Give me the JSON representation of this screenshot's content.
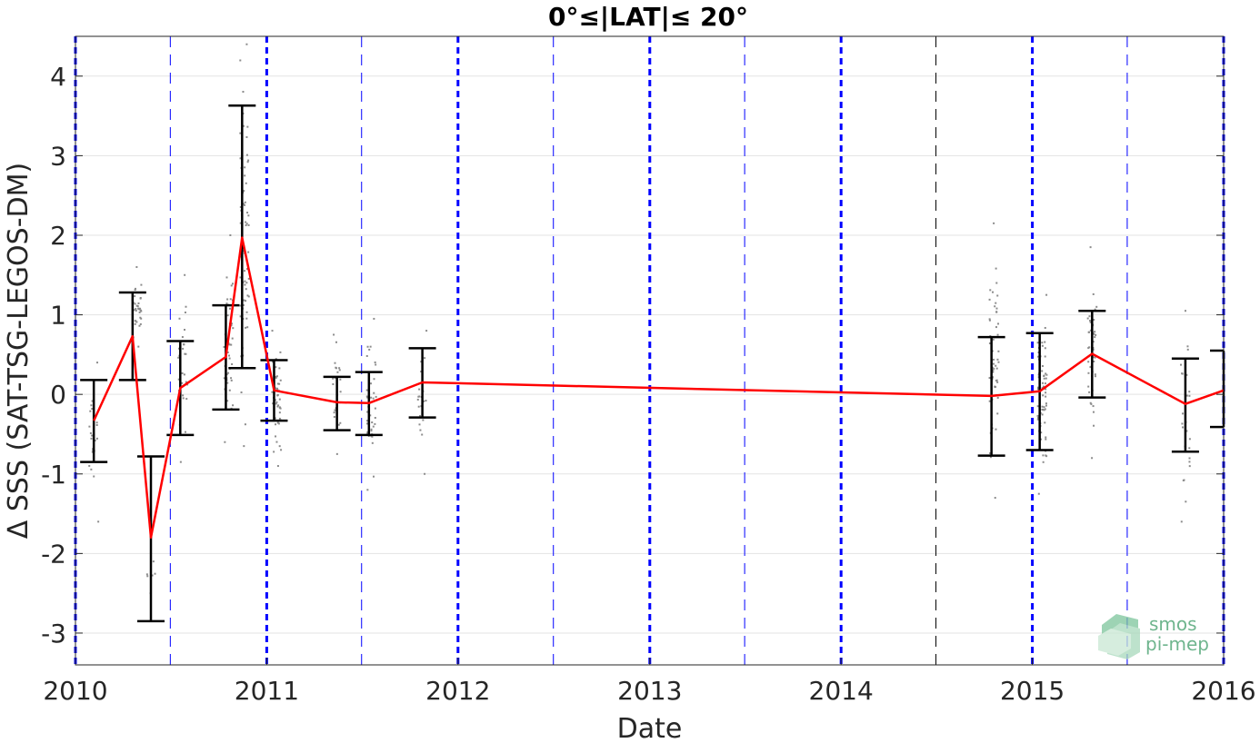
{
  "chart_data": {
    "type": "line",
    "title": "0°≤|LAT|≤ 20°",
    "xlabel": "Date",
    "ylabel": "Δ SSS (SAT-TSG-LEGOS-DM)",
    "xlim": [
      "2010-01-01",
      "2016-01-01"
    ],
    "ylim": [
      -3.4,
      4.5
    ],
    "x_ticks": [
      "2010",
      "2011",
      "2012",
      "2013",
      "2014",
      "2015",
      "2016"
    ],
    "y_ticks": [
      -3,
      -2,
      -1,
      0,
      1,
      2,
      3,
      4
    ],
    "grid": "horizontal",
    "year_lines": [
      "2010-01-01",
      "2011-01-01",
      "2012-01-01",
      "2013-01-01",
      "2014-01-01",
      "2015-01-01",
      "2016-01-01"
    ],
    "halfyear_lines": [
      "2010-07-01",
      "2011-07-01",
      "2012-07-01",
      "2013-07-01",
      "2015-07-01"
    ],
    "black_halfyear_lines": [
      "2014-07-01"
    ],
    "series": [
      {
        "type": "line",
        "color": "#ff0000",
        "x": [
          "2010-02-05",
          "2010-04-20",
          "2010-05-25",
          "2010-07-20",
          "2010-10-15",
          "2010-11-15",
          "2011-01-15",
          "2011-05-15",
          "2011-07-15",
          "2011-10-25",
          "2014-10-15",
          "2015-01-15",
          "2015-04-25",
          "2015-10-20",
          "2016-01-01"
        ],
        "y": [
          -0.33,
          0.73,
          -1.8,
          0.08,
          0.47,
          1.97,
          0.05,
          -0.1,
          -0.11,
          0.15,
          -0.02,
          0.04,
          0.51,
          -0.12,
          0.05
        ]
      }
    ],
    "error_bars": [
      {
        "x": "2010-02-05",
        "low": -0.85,
        "high": 0.18
      },
      {
        "x": "2010-04-20",
        "low": 0.18,
        "high": 1.28
      },
      {
        "x": "2010-05-25",
        "low": -2.85,
        "high": -0.78
      },
      {
        "x": "2010-07-20",
        "low": -0.51,
        "high": 0.67
      },
      {
        "x": "2010-10-15",
        "low": -0.19,
        "high": 1.12
      },
      {
        "x": "2010-11-15",
        "low": 0.33,
        "high": 3.63
      },
      {
        "x": "2011-01-15",
        "low": -0.33,
        "high": 0.43
      },
      {
        "x": "2011-05-15",
        "low": -0.45,
        "high": 0.22
      },
      {
        "x": "2011-07-15",
        "low": -0.51,
        "high": 0.28
      },
      {
        "x": "2011-10-25",
        "low": -0.29,
        "high": 0.58
      },
      {
        "x": "2014-10-15",
        "low": -0.77,
        "high": 0.72
      },
      {
        "x": "2015-01-15",
        "low": -0.7,
        "high": 0.77
      },
      {
        "x": "2015-04-25",
        "low": -0.04,
        "high": 1.05
      },
      {
        "x": "2015-10-20",
        "low": -0.72,
        "high": 0.45
      },
      {
        "x": "2016-01-01",
        "low": -0.41,
        "high": 0.55
      }
    ],
    "scatter_clusters": [
      {
        "x": "2010-02-05",
        "min": -1.6,
        "max": 0.4,
        "n": 22
      },
      {
        "x": "2010-04-28",
        "min": 0.6,
        "max": 1.6,
        "n": 34
      },
      {
        "x": "2010-05-25",
        "min": -2.5,
        "max": -2.1,
        "n": 6
      },
      {
        "x": "2010-07-25",
        "min": -0.85,
        "max": 1.5,
        "n": 30
      },
      {
        "x": "2010-10-20",
        "min": -0.6,
        "max": 2.0,
        "n": 50
      },
      {
        "x": "2010-11-20",
        "min": -0.65,
        "max": 4.4,
        "n": 70
      },
      {
        "x": "2011-01-20",
        "min": -0.9,
        "max": 0.8,
        "n": 50
      },
      {
        "x": "2011-05-15",
        "min": -0.75,
        "max": 0.75,
        "n": 25
      },
      {
        "x": "2011-07-20",
        "min": -1.2,
        "max": 0.95,
        "n": 40
      },
      {
        "x": "2011-10-25",
        "min": -1.0,
        "max": 0.8,
        "n": 20
      },
      {
        "x": "2014-10-20",
        "min": -1.3,
        "max": 2.15,
        "n": 55
      },
      {
        "x": "2015-01-20",
        "min": -1.25,
        "max": 1.25,
        "n": 70
      },
      {
        "x": "2015-04-25",
        "min": -0.8,
        "max": 1.85,
        "n": 45
      },
      {
        "x": "2015-10-20",
        "min": -1.6,
        "max": 1.05,
        "n": 25
      }
    ],
    "logo": {
      "line1": "smos",
      "line2": "pi-mep"
    }
  }
}
